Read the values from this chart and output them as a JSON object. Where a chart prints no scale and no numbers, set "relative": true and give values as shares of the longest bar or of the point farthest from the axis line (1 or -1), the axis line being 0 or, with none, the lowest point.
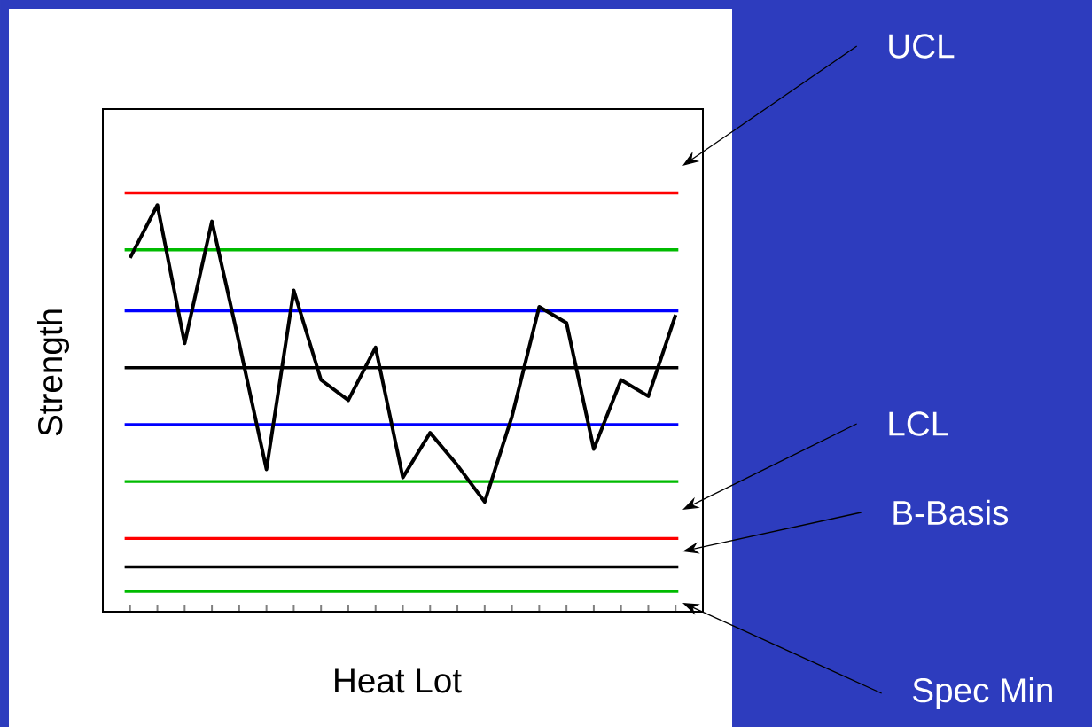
{
  "chart_data": {
    "type": "line",
    "relative": true,
    "xlabel": "Heat Lot",
    "ylabel": "Strength",
    "grid": false,
    "marker": "none",
    "line_style": "solid",
    "categories": [
      null,
      null,
      null,
      null,
      null,
      null,
      null,
      null,
      null,
      null,
      null,
      null,
      null,
      null,
      null,
      null,
      null,
      null,
      null,
      null,
      null
    ],
    "series": [
      {
        "color": "#000000",
        "values": [
          0.87,
          1.0,
          0.66,
          0.96,
          0.66,
          0.35,
          0.79,
          0.57,
          0.52,
          0.65,
          0.33,
          0.44,
          0.36,
          0.27,
          0.48,
          0.75,
          0.71,
          0.4,
          0.57,
          0.53,
          0.73
        ]
      }
    ],
    "ref_lines": [
      {
        "axis": "y",
        "value": 1.03,
        "color": "#ff0000"
      },
      {
        "axis": "y",
        "value": 0.89,
        "color": "#00bb00"
      },
      {
        "axis": "y",
        "value": 0.74,
        "color": "#0000ff"
      },
      {
        "axis": "y",
        "value": 0.6,
        "color": "#000000"
      },
      {
        "axis": "y",
        "value": 0.46,
        "color": "#0000ff"
      },
      {
        "axis": "y",
        "value": 0.32,
        "color": "#00bb00"
      },
      {
        "axis": "y",
        "value": 0.18,
        "color": "#ff0000"
      },
      {
        "axis": "y",
        "value": 0.11,
        "color": "#000000"
      },
      {
        "axis": "y",
        "value": 0.05,
        "color": "#00bb00"
      }
    ],
    "annotations": [
      "UCL",
      "LCL",
      "B-Basis",
      "Spec Min"
    ]
  }
}
